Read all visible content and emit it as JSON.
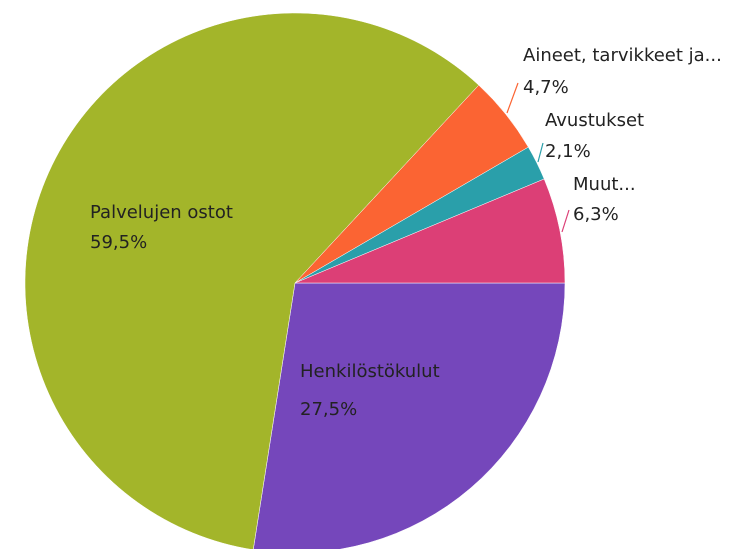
{
  "chart_data": {
    "type": "pie",
    "categories": [
      "Henkilöstökulut",
      "Palvelujen ostot",
      "Aineet, tarvikkeet ja...",
      "Avustukset",
      "Muut..."
    ],
    "values": [
      27.5,
      59.5,
      4.7,
      2.1,
      6.3
    ],
    "value_labels": [
      "27,5%",
      "59,5%",
      "4,7%",
      "2,1%",
      "6,3%"
    ],
    "colors": [
      "#7547bb",
      "#a3b52a",
      "#fb6433",
      "#2a9faa",
      "#dc3f76"
    ]
  }
}
